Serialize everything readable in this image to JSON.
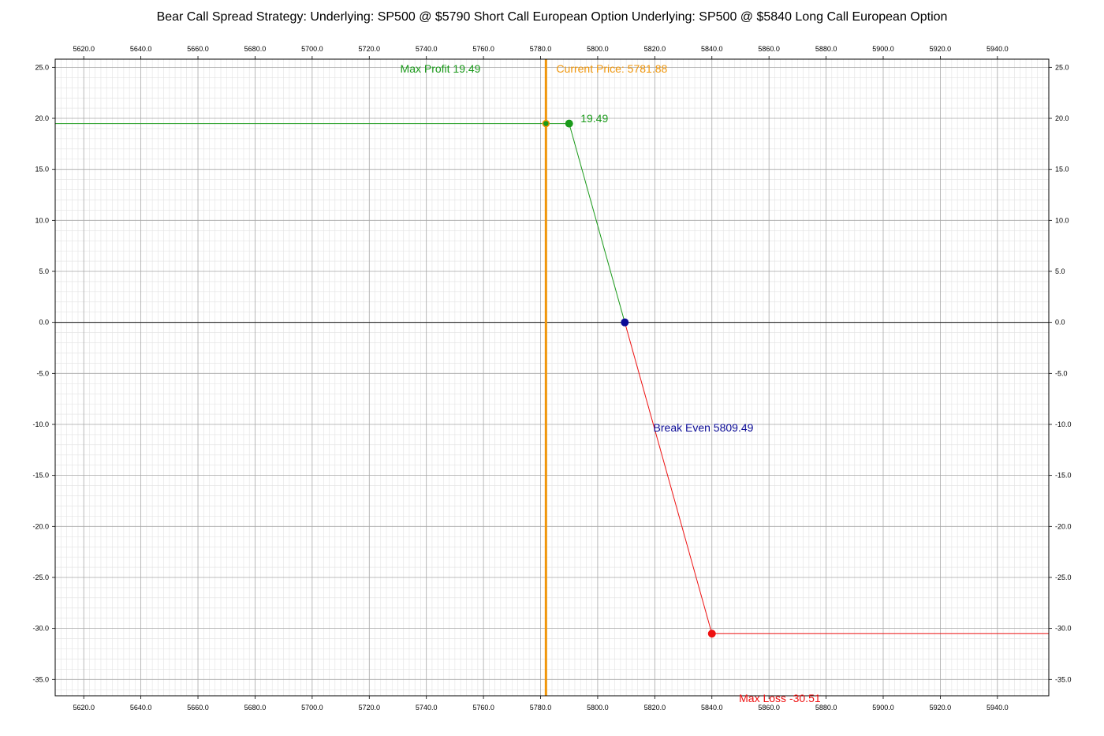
{
  "chart_data": {
    "type": "line",
    "title": "Bear Call Spread Strategy:  Underlying: SP500 @ $5790 Short Call European Option  Underlying: SP500 @ $5840 Long Call European Option",
    "xlim": [
      5610,
      5958
    ],
    "ylim": [
      -36.6,
      25.8
    ],
    "x_ticks": [
      5620,
      5640,
      5660,
      5680,
      5700,
      5720,
      5740,
      5760,
      5780,
      5800,
      5820,
      5840,
      5860,
      5880,
      5900,
      5920,
      5940
    ],
    "y_ticks": [
      25,
      20,
      15,
      10,
      5,
      0,
      -5,
      -10,
      -15,
      -20,
      -25,
      -30,
      -35
    ],
    "x_tick_labels": [
      "5620.0",
      "5640.0",
      "5660.0",
      "5680.0",
      "5700.0",
      "5720.0",
      "5740.0",
      "5760.0",
      "5780.0",
      "5800.0",
      "5820.0",
      "5840.0",
      "5860.0",
      "5880.0",
      "5900.0",
      "5920.0",
      "5940.0"
    ],
    "y_tick_labels": [
      "25.0",
      "20.0",
      "15.0",
      "10.0",
      "5.0",
      "0.0",
      "-5.0",
      "-10.0",
      "-15.0",
      "-20.0",
      "-25.0",
      "-30.0",
      "-35.0"
    ],
    "grid": true,
    "series": [
      {
        "color": "#1a9a1a",
        "points": [
          [
            5610,
            19.49
          ],
          [
            5790,
            19.49
          ],
          [
            5809.49,
            0
          ]
        ]
      },
      {
        "color": "#ee1111",
        "points": [
          [
            5809.49,
            0
          ],
          [
            5840,
            -30.51
          ],
          [
            5958,
            -30.51
          ]
        ]
      }
    ],
    "current_price": {
      "x": 5781.88,
      "color": "#f0960a"
    },
    "markers": [
      {
        "x": 5781.88,
        "y": 19.49,
        "color": "#1a9a1a",
        "style": "ring"
      },
      {
        "x": 5790,
        "y": 19.49,
        "color": "#1a9a1a",
        "style": "dot"
      },
      {
        "x": 5809.49,
        "y": 0,
        "color": "#0a0a96",
        "style": "dot"
      },
      {
        "x": 5840,
        "y": -30.51,
        "color": "#ee1111",
        "style": "dot"
      }
    ],
    "annotations": [
      {
        "text": "Max Profit 19.49",
        "x": 5759,
        "y": 24.5,
        "color": "#1a9a1a",
        "anchor": "end"
      },
      {
        "text": "Current Price: 5781.88",
        "x": 5785.5,
        "y": 24.5,
        "color": "#f0960a",
        "anchor": "start"
      },
      {
        "text": "19.49",
        "x": 5794,
        "y": 19.6,
        "color": "#1a9a1a",
        "anchor": "start"
      },
      {
        "text": "Break Even 5809.49",
        "x": 5819.5,
        "y": -10.7,
        "color": "#0a0a96",
        "anchor": "start"
      },
      {
        "text": "Max Loss -30.51",
        "x": 5849.5,
        "y": -37.2,
        "color": "#ee1111",
        "anchor": "start"
      }
    ]
  }
}
